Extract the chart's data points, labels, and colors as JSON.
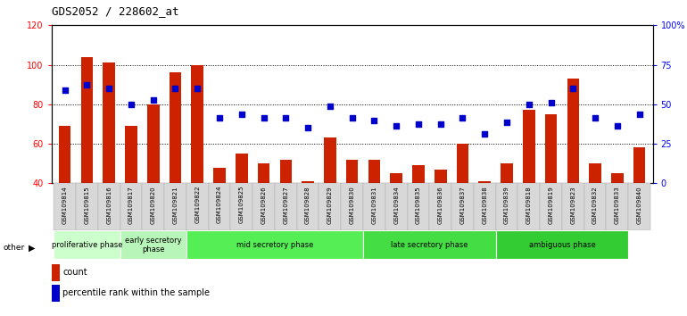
{
  "title": "GDS2052 / 228602_at",
  "categories": [
    "GSM109814",
    "GSM109815",
    "GSM109816",
    "GSM109817",
    "GSM109820",
    "GSM109821",
    "GSM109822",
    "GSM109824",
    "GSM109825",
    "GSM109826",
    "GSM109827",
    "GSM109828",
    "GSM109829",
    "GSM109830",
    "GSM109831",
    "GSM109834",
    "GSM109835",
    "GSM109836",
    "GSM109837",
    "GSM109838",
    "GSM109839",
    "GSM109818",
    "GSM109819",
    "GSM109823",
    "GSM109832",
    "GSM109833",
    "GSM109840"
  ],
  "bar_values": [
    69,
    104,
    101,
    69,
    80,
    96,
    100,
    48,
    55,
    50,
    52,
    41,
    63,
    52,
    52,
    45,
    49,
    47,
    60,
    41,
    50,
    77,
    75,
    93,
    50,
    45,
    58
  ],
  "dot_values_left": [
    87,
    90,
    88,
    80,
    82,
    88,
    88,
    73,
    75,
    73,
    73,
    68,
    79,
    73,
    72,
    69,
    70,
    70,
    73,
    65,
    71,
    80,
    81,
    88,
    73,
    69,
    75
  ],
  "ylim_left": [
    40,
    120
  ],
  "ylim_right": [
    0,
    100
  ],
  "yticks_left": [
    40,
    60,
    80,
    100,
    120
  ],
  "yticks_right": [
    0,
    25,
    50,
    75,
    100
  ],
  "ytick_right_labels": [
    "0",
    "25",
    "50",
    "75",
    "100%"
  ],
  "bar_color": "#cc2200",
  "dot_color": "#0000cc",
  "group_spans": [
    [
      0,
      3,
      "proliferative phase",
      "#ccffcc"
    ],
    [
      3,
      6,
      "early secretory\nphase",
      "#b8f5b8"
    ],
    [
      6,
      14,
      "mid secretory phase",
      "#55ee55"
    ],
    [
      14,
      20,
      "late secretory phase",
      "#44dd44"
    ],
    [
      20,
      26,
      "ambiguous phase",
      "#33cc33"
    ]
  ],
  "legend_count": "count",
  "legend_pct": "percentile rank within the sample",
  "plot_bg": "#ffffff",
  "fig_bg": "#ffffff"
}
